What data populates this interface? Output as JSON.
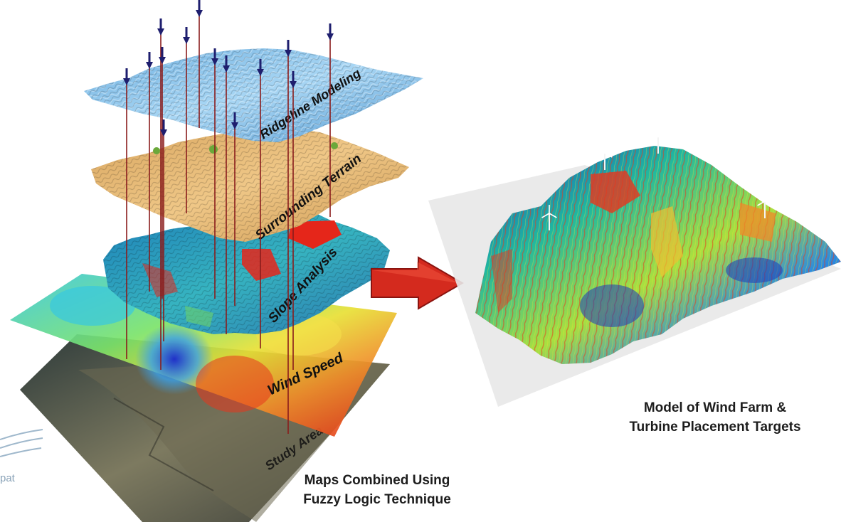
{
  "layers": [
    {
      "id": "ridgeline",
      "label": "Ridgeline Modeling"
    },
    {
      "id": "terrain",
      "label": "Surrounding Terrain"
    },
    {
      "id": "slope",
      "label": "Slope Analysis"
    },
    {
      "id": "wind",
      "label": "Wind Speed"
    },
    {
      "id": "study",
      "label": "Study Area"
    }
  ],
  "captions": {
    "left_line1": "Maps Combined Using",
    "left_line2": "Fuzzy Logic Technique",
    "right_line1": "Model of Wind Farm &",
    "right_line2": "Turbine Placement Targets"
  },
  "side_fragment": "pat",
  "colors": {
    "ridgeline": "#8cc4e8",
    "terrain": "#e3b872",
    "slope": "#2f9fc8",
    "arrow": "#d42a1e",
    "pin": "#8a1c1c",
    "pin_head": "#1e1e6e"
  }
}
